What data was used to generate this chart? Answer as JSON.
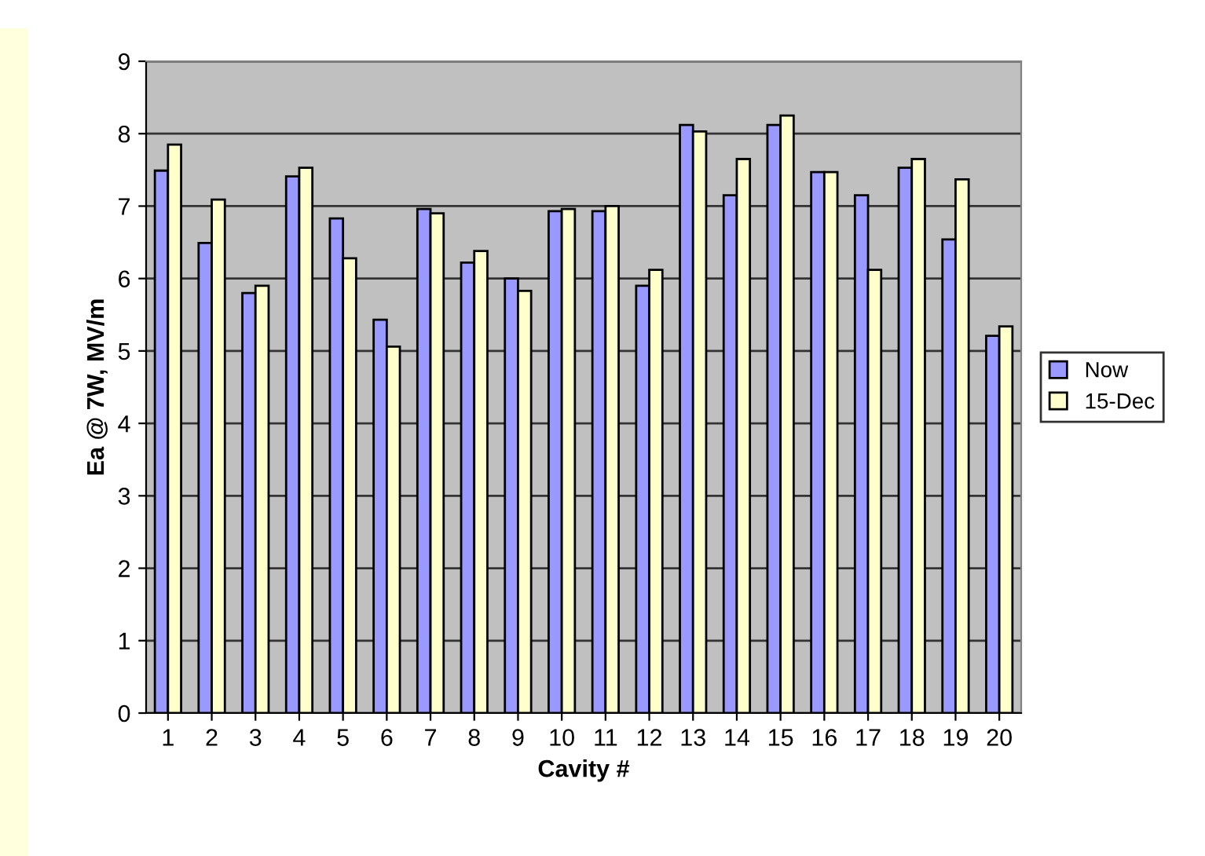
{
  "chart_data": {
    "type": "bar",
    "xlabel": "Cavity #",
    "ylabel": "Ea @ 7W, MV/m",
    "categories": [
      "1",
      "2",
      "3",
      "4",
      "5",
      "6",
      "7",
      "8",
      "9",
      "10",
      "11",
      "12",
      "13",
      "14",
      "15",
      "16",
      "17",
      "18",
      "19",
      "20"
    ],
    "series": [
      {
        "name": "Now",
        "color": "#9999ff",
        "values": [
          7.49,
          6.49,
          5.8,
          7.41,
          6.83,
          5.43,
          6.96,
          6.22,
          6.0,
          6.93,
          6.93,
          5.9,
          8.12,
          7.15,
          8.12,
          7.47,
          7.15,
          7.53,
          6.54,
          5.21
        ]
      },
      {
        "name": "15-Dec",
        "color": "#ffffcc",
        "values": [
          7.85,
          7.09,
          5.9,
          7.53,
          6.28,
          5.06,
          6.9,
          6.38,
          5.83,
          6.96,
          7.0,
          6.12,
          8.03,
          7.65,
          8.25,
          7.47,
          6.12,
          7.65,
          7.37,
          5.34
        ]
      }
    ],
    "ylim": [
      0,
      9
    ],
    "yticks": [
      0,
      1,
      2,
      3,
      4,
      5,
      6,
      7,
      8,
      9
    ],
    "grid": "y",
    "legend": "right"
  }
}
